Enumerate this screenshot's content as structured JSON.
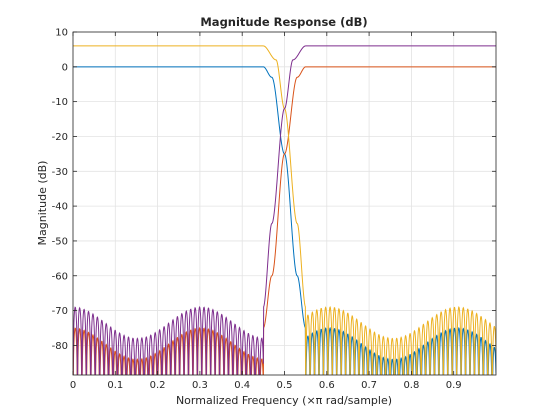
{
  "chart_data": {
    "type": "line",
    "title": "Magnitude Response (dB)",
    "xlabel": "Normalized Frequency (×π rad/sample)",
    "ylabel": "Magnitude (dB)",
    "xlim": [
      0,
      1
    ],
    "ylim": [
      -88.5,
      10
    ],
    "xticks": [
      0,
      0.1,
      0.2,
      0.3,
      0.4,
      0.5,
      0.6,
      0.7,
      0.8,
      0.9
    ],
    "xtick_labels": [
      "0",
      "0.1",
      "0.2",
      "0.3",
      "0.4",
      "0.5",
      "0.6",
      "0.7",
      "0.8",
      "0.9"
    ],
    "yticks": [
      10,
      0,
      -10,
      -20,
      -30,
      -40,
      -50,
      -60,
      -70,
      -80
    ],
    "ytick_labels": [
      "10",
      "0",
      "-10",
      "-20",
      "-30",
      "-40",
      "-50",
      "-60",
      "-70",
      "-80"
    ],
    "grid": true,
    "series": [
      {
        "color": "#0072bd",
        "passband_level": 0,
        "passband": [
          0,
          0.45
        ],
        "transition": [
          0.45,
          0.55
        ],
        "stopband": [
          0.55,
          1.0
        ],
        "stopband_peak": -75,
        "filter": "lowpass",
        "key_points": [
          [
            0,
            0
          ],
          [
            0.45,
            0
          ],
          [
            0.47,
            -3
          ],
          [
            0.5,
            -25
          ],
          [
            0.53,
            -60
          ],
          [
            0.55,
            -75
          ]
        ]
      },
      {
        "color": "#d95319",
        "passband_level": 0,
        "passband": [
          0.55,
          1.0
        ],
        "transition": [
          0.45,
          0.55
        ],
        "stopband": [
          0,
          0.45
        ],
        "stopband_peak": -75,
        "filter": "highpass",
        "key_points": [
          [
            0.45,
            -75
          ],
          [
            0.47,
            -60
          ],
          [
            0.5,
            -25
          ],
          [
            0.53,
            -3
          ],
          [
            0.55,
            0
          ],
          [
            1.0,
            0
          ]
        ]
      },
      {
        "color": "#edb120",
        "passband_level": 6,
        "passband": [
          0,
          0.45
        ],
        "transition": [
          0.45,
          0.55
        ],
        "stopband": [
          0.55,
          1.0
        ],
        "stopband_peak": -69,
        "filter": "lowpass",
        "key_points": [
          [
            0,
            6
          ],
          [
            0.45,
            6
          ],
          [
            0.48,
            2
          ],
          [
            0.5,
            -12
          ],
          [
            0.53,
            -45
          ],
          [
            0.55,
            -69
          ]
        ]
      },
      {
        "color": "#7e2f8e",
        "passband_level": 6,
        "passband": [
          0.55,
          1.0
        ],
        "transition": [
          0.45,
          0.55
        ],
        "stopband": [
          0,
          0.45
        ],
        "stopband_peak": -69,
        "filter": "highpass",
        "key_points": [
          [
            0.45,
            -69
          ],
          [
            0.47,
            -45
          ],
          [
            0.5,
            -12
          ],
          [
            0.52,
            2
          ],
          [
            0.55,
            6
          ],
          [
            1.0,
            6
          ]
        ]
      }
    ]
  }
}
